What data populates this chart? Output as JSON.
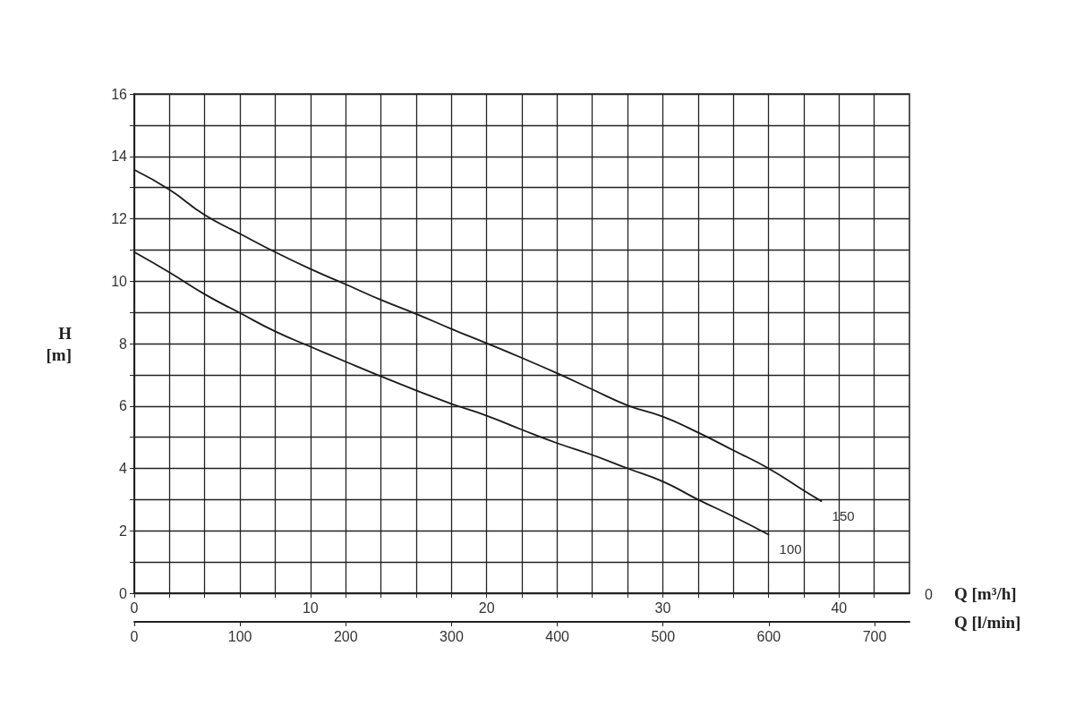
{
  "chart_data": {
    "type": "line",
    "xlabel": "Q [m³/h]",
    "ylabel": "H\n[m]",
    "x2label": "Q [l/min]",
    "xlim": [
      0,
      44
    ],
    "xticks": [
      0,
      {
        "value": 2,
        "label": null
      },
      {
        "value": 4,
        "label": null
      },
      {
        "value": 6,
        "label": null
      },
      {
        "value": 8,
        "label": null
      },
      10,
      {
        "value": 12,
        "label": null
      },
      {
        "value": 14,
        "label": null
      },
      {
        "value": 16,
        "label": null
      },
      {
        "value": 18,
        "label": null
      },
      20,
      {
        "value": 22,
        "label": null
      },
      {
        "value": 24,
        "label": null
      },
      {
        "value": 26,
        "label": null
      },
      {
        "value": 28,
        "label": null
      },
      30,
      {
        "value": 32,
        "label": null
      },
      {
        "value": 34,
        "label": null
      },
      {
        "value": 36,
        "label": null
      },
      {
        "value": 38,
        "label": null
      },
      40,
      {
        "value": 42,
        "label": null
      }
    ],
    "x2lim": [
      0,
      733
    ],
    "x2ticks": [
      0,
      100,
      200,
      300,
      400,
      500,
      600,
      700
    ],
    "ylim": [
      0,
      16
    ],
    "yticks": [
      0,
      {
        "value": 1,
        "label": null
      },
      2,
      {
        "value": 3,
        "label": null
      },
      4,
      {
        "value": 5,
        "label": null
      },
      6,
      {
        "value": 7,
        "label": null
      },
      8,
      {
        "value": 9,
        "label": null
      },
      10,
      {
        "value": 11,
        "label": null
      },
      12,
      {
        "value": 13,
        "label": null
      },
      14,
      {
        "value": 15,
        "label": null
      },
      16
    ],
    "annotations": [
      "0"
    ],
    "grid": true,
    "legend": false,
    "marker": "none",
    "line_style": "solid",
    "series": [
      {
        "name": "150",
        "color": "#1a1a1a",
        "x": [
          0,
          2,
          4,
          6,
          8,
          10,
          12,
          14,
          16,
          18,
          20,
          22,
          24,
          26,
          28,
          30,
          32,
          34,
          36,
          38,
          39
        ],
        "values": [
          13.57,
          12.93,
          12.12,
          11.52,
          10.93,
          10.39,
          9.9,
          9.4,
          8.95,
          8.47,
          8.01,
          7.54,
          7.05,
          6.53,
          6.02,
          5.66,
          5.15,
          4.58,
          4.0,
          3.29,
          2.95
        ]
      },
      {
        "name": "100",
        "color": "#1a1a1a",
        "x": [
          0,
          2,
          4,
          6,
          8,
          10,
          12,
          14,
          16,
          18,
          20,
          22,
          24,
          26,
          28,
          30,
          32,
          34,
          36
        ],
        "values": [
          10.93,
          10.28,
          9.58,
          8.98,
          8.39,
          7.9,
          7.42,
          6.95,
          6.5,
          6.07,
          5.69,
          5.24,
          4.81,
          4.43,
          4.0,
          3.58,
          3.0,
          2.46,
          1.88
        ]
      }
    ]
  }
}
